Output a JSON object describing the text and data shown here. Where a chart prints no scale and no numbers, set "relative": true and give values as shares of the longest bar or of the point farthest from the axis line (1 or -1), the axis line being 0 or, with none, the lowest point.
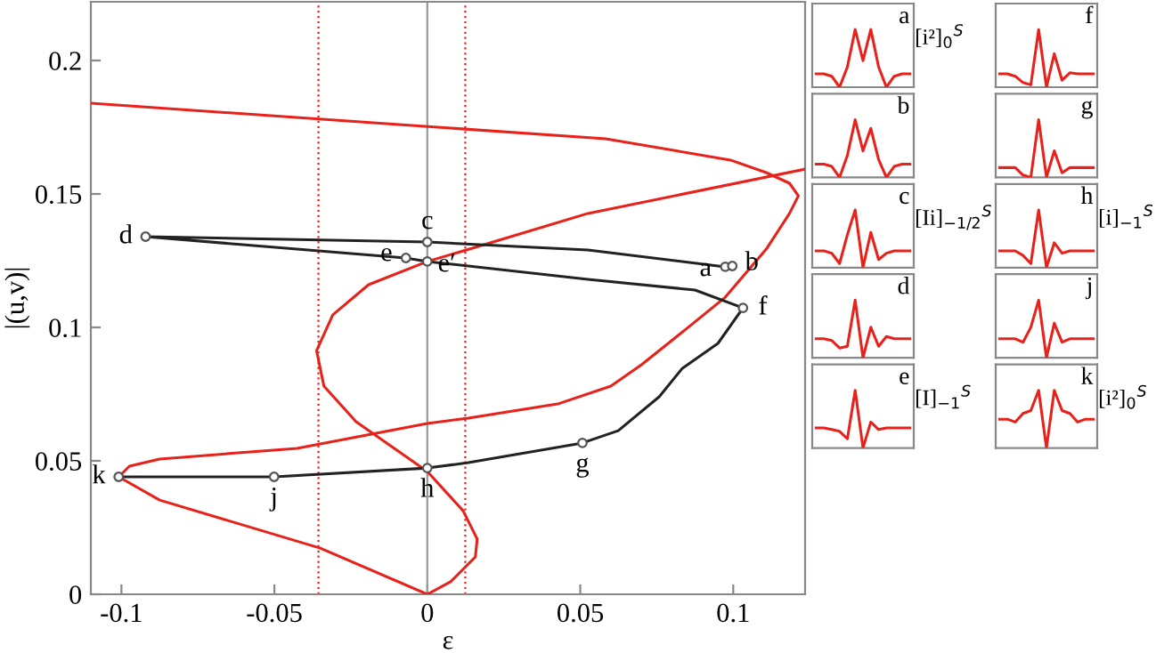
{
  "chart_data": [
    {
      "type": "line",
      "xlabel": "ε",
      "ylabel": "|(u,v)|",
      "xlim": [
        -0.11,
        0.1235
      ],
      "ylim": [
        0,
        0.222
      ],
      "xticks": [
        -0.1,
        -0.05,
        0,
        0.05,
        0.1
      ],
      "yticks": [
        0,
        0.05,
        0.1,
        0.15,
        0.2
      ],
      "series": [
        {
          "color": "#e8221b",
          "x": [
            -0.11,
            -0.0093,
            0.0583,
            0.0991,
            0.1108,
            0.1184,
            0.1213,
            0.1184,
            0.1108,
            0.0974,
            0.0845,
            0.07,
            0.06,
            0.0426,
            0.0134,
            0,
            -0.0426,
            -0.0875,
            -0.0974,
            -0.1009,
            -0.0875,
            -0.035,
            0,
            0.0076,
            0.0157,
            0.0163,
            0.0117,
            0,
            -0.0233,
            -0.0338,
            -0.0362,
            -0.0309,
            -0.0192,
            0,
            0.0157,
            0.0525,
            0.1235
          ],
          "values": [
            0.184,
            0.176,
            0.1707,
            0.1627,
            0.158,
            0.154,
            0.1493,
            0.1427,
            0.1293,
            0.1113,
            0.0993,
            0.086,
            0.078,
            0.0713,
            0.066,
            0.064,
            0.0547,
            0.0507,
            0.048,
            0.044,
            0.0353,
            0.0173,
            0,
            0.0047,
            0.014,
            0.0207,
            0.0313,
            0.046,
            0.0647,
            0.078,
            0.0913,
            0.1047,
            0.116,
            0.1247,
            0.13,
            0.1427,
            0.1593
          ]
        },
        {
          "color": "#222222",
          "x": [
            0.0997,
            0.0974,
            0.0525,
            0,
            -0.0921,
            -0.007,
            0,
            0.0525,
            0.0875,
            0.1032,
            0.095,
            0.0834,
            0.0758,
            0.0624,
            0.0507,
            0.0134,
            0,
            -0.0501,
            -0.1009
          ],
          "values": [
            0.123,
            0.1227,
            0.129,
            0.132,
            0.134,
            0.126,
            0.1247,
            0.118,
            0.114,
            0.1073,
            0.094,
            0.0847,
            0.074,
            0.0613,
            0.0567,
            0.0493,
            0.0473,
            0.044,
            0.044
          ]
        },
        {
          "type": "scatter",
          "marker": "circle",
          "color": "#555555",
          "x": [
            0.0974,
            0.0997,
            0,
            -0.0921,
            -0.007,
            0,
            0.1032,
            0.0507,
            0,
            -0.0501,
            -0.1009
          ],
          "values": [
            0.1227,
            0.123,
            0.132,
            0.134,
            0.126,
            0.1247,
            0.1073,
            0.0567,
            0.0473,
            0.044,
            0.044
          ]
        }
      ],
      "ref_lines": [
        {
          "axis": "x",
          "value": -0.0356,
          "color": "#e8221b",
          "line_style": "dotted"
        },
        {
          "axis": "x",
          "value": 0.0124,
          "color": "#e8221b",
          "line_style": "dotted"
        },
        {
          "axis": "x",
          "value": 0,
          "color": "#999999",
          "line_style": "solid"
        }
      ],
      "annotations": [
        {
          "text": "a",
          "x": 0.0974,
          "y": 0.1227
        },
        {
          "text": "b",
          "x": 0.0997,
          "y": 0.123
        },
        {
          "text": "c",
          "x": 0,
          "y": 0.132
        },
        {
          "text": "d",
          "x": -0.0921,
          "y": 0.134
        },
        {
          "text": "e",
          "x": -0.007,
          "y": 0.126
        },
        {
          "text": "e′",
          "x": 0,
          "y": 0.1247
        },
        {
          "text": "f",
          "x": 0.1032,
          "y": 0.1073
        },
        {
          "text": "g",
          "x": 0.0507,
          "y": 0.0567
        },
        {
          "text": "h",
          "x": 0,
          "y": 0.0473
        },
        {
          "text": "j",
          "x": -0.0501,
          "y": 0.044
        },
        {
          "text": "k",
          "x": -0.1009,
          "y": 0.044
        }
      ]
    },
    {
      "type": "line",
      "title": "a",
      "relative": true,
      "categories": [
        null,
        null,
        null,
        null,
        null,
        null,
        null,
        null,
        null,
        null,
        null,
        null,
        null
      ],
      "series": [
        {
          "color": "#e8221b",
          "values": [
            0.23,
            0.23,
            0.19,
            0,
            0.35,
            1,
            0.46,
            1,
            0.35,
            0,
            0.19,
            0.23,
            0.23
          ]
        }
      ],
      "annotations": [
        "[i²]$_{0}$$^{S}$"
      ]
    },
    {
      "type": "line",
      "title": "f",
      "relative": true,
      "categories": [
        null,
        null,
        null,
        null,
        null,
        null,
        null,
        null,
        null,
        null,
        null,
        null,
        null
      ],
      "series": [
        {
          "color": "#e8221b",
          "values": [
            0.23,
            0.23,
            0.19,
            0.08,
            0.04,
            1,
            0,
            0.58,
            0.12,
            0.25,
            0.23,
            0.23,
            0.23
          ]
        }
      ]
    },
    {
      "type": "line",
      "title": "b",
      "relative": true,
      "categories": [
        null,
        null,
        null,
        null,
        null,
        null,
        null,
        null,
        null,
        null,
        null,
        null,
        null
      ],
      "series": [
        {
          "color": "#e8221b",
          "values": [
            0.23,
            0.23,
            0.19,
            0,
            0.38,
            1,
            0.46,
            0.85,
            0.31,
            0,
            0.19,
            0.23,
            0.23
          ]
        }
      ]
    },
    {
      "type": "line",
      "title": "g",
      "relative": true,
      "categories": [
        null,
        null,
        null,
        null,
        null,
        null,
        null,
        null,
        null,
        null,
        null,
        null,
        null
      ],
      "series": [
        {
          "color": "#e8221b",
          "values": [
            0.17,
            0.17,
            0.17,
            0.04,
            0,
            1,
            0,
            0.46,
            0.08,
            0.17,
            0.17,
            0.17,
            0.17
          ]
        }
      ]
    },
    {
      "type": "line",
      "title": "c",
      "relative": true,
      "categories": [
        null,
        null,
        null,
        null,
        null,
        null,
        null,
        null,
        null,
        null,
        null,
        null,
        null
      ],
      "series": [
        {
          "color": "#e8221b",
          "values": [
            0.29,
            0.29,
            0.25,
            0.07,
            0.57,
            1,
            0,
            0.61,
            0.14,
            0.25,
            0.29,
            0.29,
            0.29
          ]
        }
      ],
      "annotations": [
        "[Ii]$_{−1/2}$$^{S}$"
      ]
    },
    {
      "type": "line",
      "title": "h",
      "relative": true,
      "categories": [
        null,
        null,
        null,
        null,
        null,
        null,
        null,
        null,
        null,
        null,
        null,
        null,
        null
      ],
      "series": [
        {
          "color": "#e8221b",
          "values": [
            0.29,
            0.29,
            0.29,
            0.21,
            0.07,
            1,
            0,
            0.43,
            0.25,
            0.29,
            0.29,
            0.29,
            0.29
          ]
        }
      ],
      "annotations": [
        "[i]$_{−1}$$^{S}$"
      ]
    },
    {
      "type": "line",
      "title": "d",
      "relative": true,
      "categories": [
        null,
        null,
        null,
        null,
        null,
        null,
        null,
        null,
        null,
        null,
        null,
        null,
        null
      ],
      "series": [
        {
          "color": "#e8221b",
          "values": [
            0.33,
            0.33,
            0.3,
            0.17,
            0.2,
            1,
            0,
            0.53,
            0.2,
            0.37,
            0.33,
            0.33,
            0.33
          ]
        }
      ]
    },
    {
      "type": "line",
      "title": "j",
      "relative": true,
      "categories": [
        null,
        null,
        null,
        null,
        null,
        null,
        null,
        null,
        null,
        null,
        null,
        null,
        null
      ],
      "series": [
        {
          "color": "#e8221b",
          "values": [
            0.33,
            0.33,
            0.33,
            0.27,
            0.53,
            1,
            0,
            0.6,
            0.27,
            0.33,
            0.33,
            0.33,
            0.33
          ]
        }
      ]
    },
    {
      "type": "line",
      "title": "e",
      "relative": true,
      "categories": [
        null,
        null,
        null,
        null,
        null,
        null,
        null,
        null,
        null,
        null,
        null,
        null,
        null
      ],
      "series": [
        {
          "color": "#e8221b",
          "values": [
            0.35,
            0.35,
            0.32,
            0.29,
            0.16,
            1,
            0,
            0.45,
            0.32,
            0.35,
            0.35,
            0.35,
            0.35
          ]
        }
      ],
      "annotations": [
        "[I]$_{−1}$$^{S}$"
      ]
    },
    {
      "type": "line",
      "title": "k",
      "relative": true,
      "categories": [
        null,
        null,
        null,
        null,
        null,
        null,
        null,
        null,
        null,
        null,
        null,
        null,
        null
      ],
      "series": [
        {
          "color": "#e8221b",
          "values": [
            0.5,
            0.5,
            0.45,
            0.6,
            0.65,
            1,
            0,
            1,
            0.65,
            0.6,
            0.45,
            0.5,
            0.5
          ]
        }
      ],
      "annotations": [
        "[i²]$_{0}$$^{S}$"
      ]
    }
  ]
}
